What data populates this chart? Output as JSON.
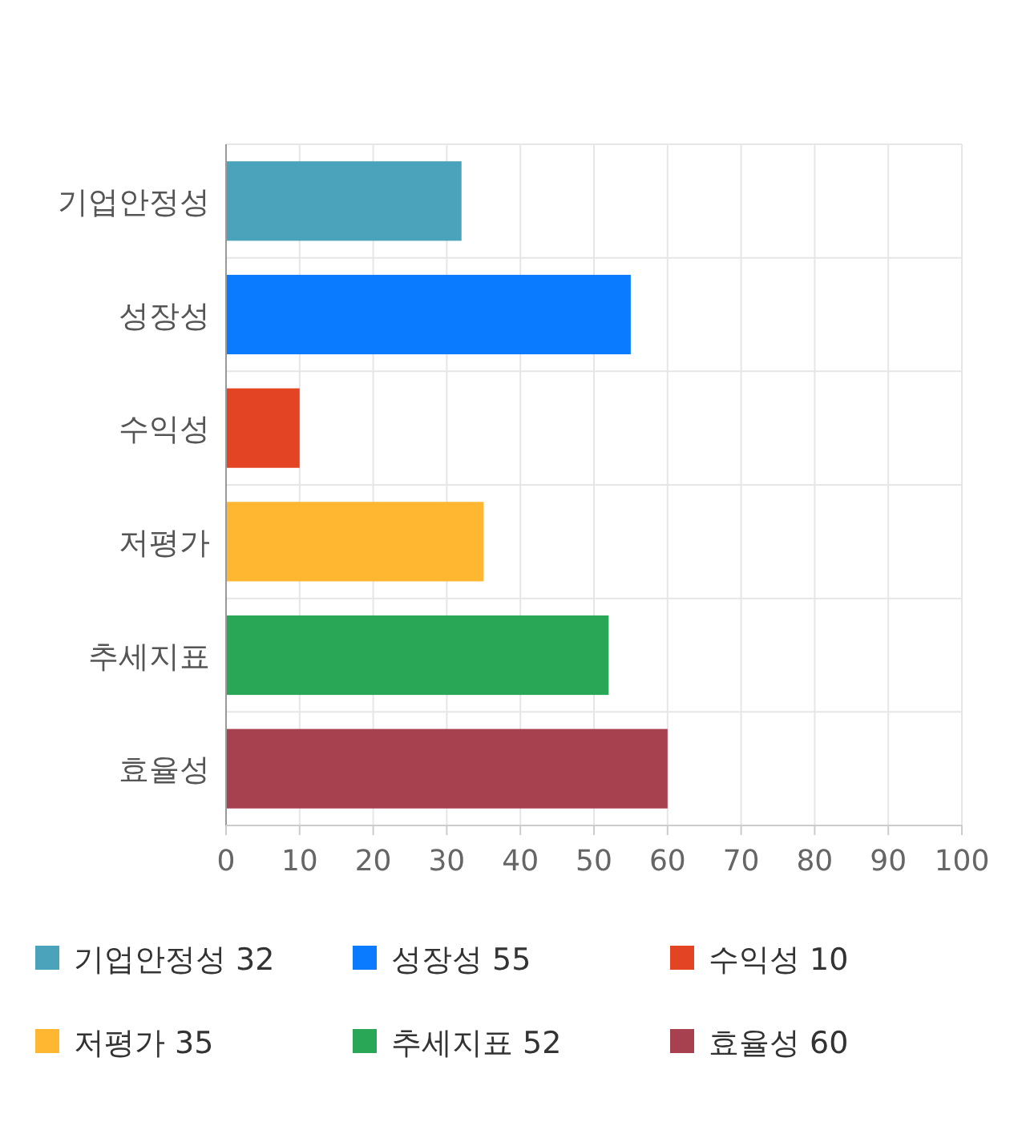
{
  "chart_data": {
    "type": "bar",
    "orientation": "horizontal",
    "stacked": true,
    "categories": [
      "기업안정성",
      "성장성",
      "수익성",
      "저평가",
      "추세지표",
      "효율성"
    ],
    "series": [
      {
        "name": "기업안정성 32",
        "color": "#4aa2bb",
        "values": [
          32,
          null,
          null,
          null,
          null,
          null
        ]
      },
      {
        "name": "성장성 55",
        "color": "#0a7bff",
        "values": [
          null,
          55,
          null,
          null,
          null,
          null
        ]
      },
      {
        "name": "수익성 10",
        "color": "#e34524",
        "values": [
          null,
          null,
          10,
          null,
          null,
          null
        ]
      },
      {
        "name": "저평가 35",
        "color": "#ffb732",
        "values": [
          null,
          null,
          null,
          35,
          null,
          null
        ]
      },
      {
        "name": "추세지표 52",
        "color": "#29a756",
        "values": [
          null,
          null,
          null,
          null,
          52,
          null
        ]
      },
      {
        "name": "효율성 60",
        "color": "#a7404f",
        "values": [
          null,
          null,
          null,
          null,
          null,
          60
        ]
      }
    ],
    "xlim": [
      0,
      100
    ],
    "xticks": [
      0,
      10,
      20,
      30,
      40,
      50,
      60,
      70,
      80,
      90,
      100
    ],
    "grid": true,
    "legend": "bottom"
  }
}
